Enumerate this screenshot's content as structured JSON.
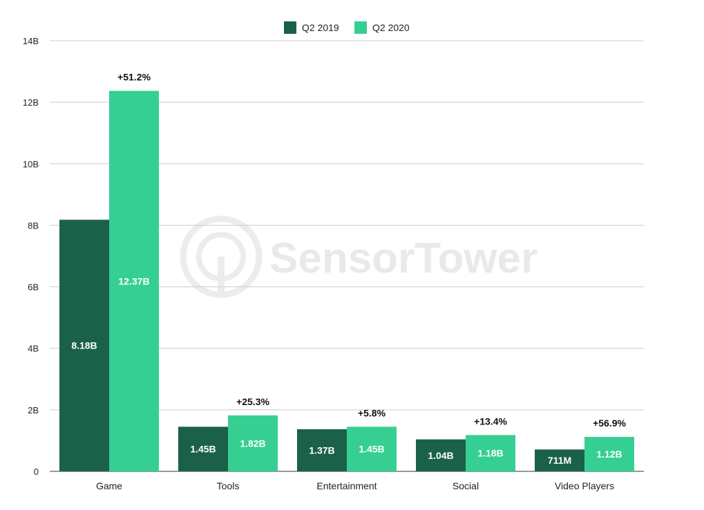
{
  "chart_data": {
    "type": "bar",
    "categories": [
      "Game",
      "Tools",
      "Entertainment",
      "Social",
      "Video Players"
    ],
    "series": [
      {
        "name": "Q2 2019",
        "values": [
          8.18,
          1.45,
          1.37,
          1.04,
          0.711
        ],
        "labels": [
          "8.18B",
          "1.45B",
          "1.37B",
          "1.04B",
          "711M"
        ],
        "color": "#1b614a"
      },
      {
        "name": "Q2 2020",
        "values": [
          12.37,
          1.82,
          1.45,
          1.18,
          1.12
        ],
        "labels": [
          "12.37B",
          "1.82B",
          "1.45B",
          "1.18B",
          "1.12B"
        ],
        "color": "#36cf93"
      }
    ],
    "growth_labels": [
      "+51.2%",
      "+25.3%",
      "+5.8%",
      "+13.4%",
      "+56.9%"
    ],
    "y_ticks": [
      0,
      2,
      4,
      6,
      8,
      10,
      12,
      14
    ],
    "y_tick_labels": [
      "0",
      "2B",
      "4B",
      "6B",
      "8B",
      "10B",
      "12B",
      "14B"
    ],
    "ylim": [
      0,
      14
    ],
    "grid": true,
    "legend_position": "top-center",
    "title": "",
    "xlabel": "",
    "ylabel": ""
  },
  "watermark": {
    "text": "SensorTower",
    "icon": "sensortower-logo-icon"
  }
}
